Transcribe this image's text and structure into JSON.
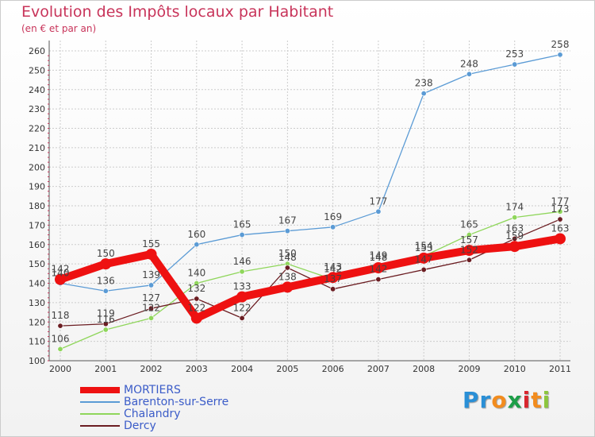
{
  "title": "Evolution des Impôts locaux par Habitant",
  "subtitle": "(en € et par an)",
  "logo": {
    "text": "Proxiti",
    "letters": [
      "P",
      "r",
      "o",
      "x",
      "i",
      "t",
      "i"
    ],
    "colors": [
      "#2a8fd6",
      "#2a8fd6",
      "#f28c1e",
      "#1d9e48",
      "#d8262e",
      "#f28c1e",
      "#8cc63f"
    ]
  },
  "chart_data": {
    "type": "line",
    "title": "Evolution des Impôts locaux par Habitant",
    "ylabel": "(en € et par an)",
    "xlabel": "",
    "x": [
      "2000",
      "2001",
      "2002",
      "2003",
      "2004",
      "2005",
      "2006",
      "2007",
      "2008",
      "2009",
      "2010",
      "2011"
    ],
    "ylim": [
      100,
      260
    ],
    "yticks": [
      100,
      110,
      120,
      130,
      140,
      150,
      160,
      170,
      180,
      190,
      200,
      210,
      220,
      230,
      240,
      250,
      260
    ],
    "grid": true,
    "legend_position": "bottom-left",
    "series": [
      {
        "name": "MORTIERS",
        "color": "#ee1111",
        "values": [
          142,
          150,
          155,
          122,
          133,
          138,
          143,
          148,
          153,
          157,
          159,
          163
        ]
      },
      {
        "name": "Barenton-sur-Serre",
        "color": "#5b9bd5",
        "values": [
          140,
          136,
          139,
          160,
          165,
          167,
          169,
          177,
          238,
          248,
          253,
          258
        ]
      },
      {
        "name": "Chalandry",
        "color": "#8fd65b",
        "values": [
          106,
          116,
          122,
          140,
          146,
          150,
          142,
          149,
          154,
          165,
          174,
          177
        ]
      },
      {
        "name": "Dercy",
        "color": "#6b1d22",
        "values": [
          118,
          119,
          127,
          132,
          122,
          148,
          137,
          142,
          147,
          152,
          163,
          173
        ]
      }
    ]
  }
}
